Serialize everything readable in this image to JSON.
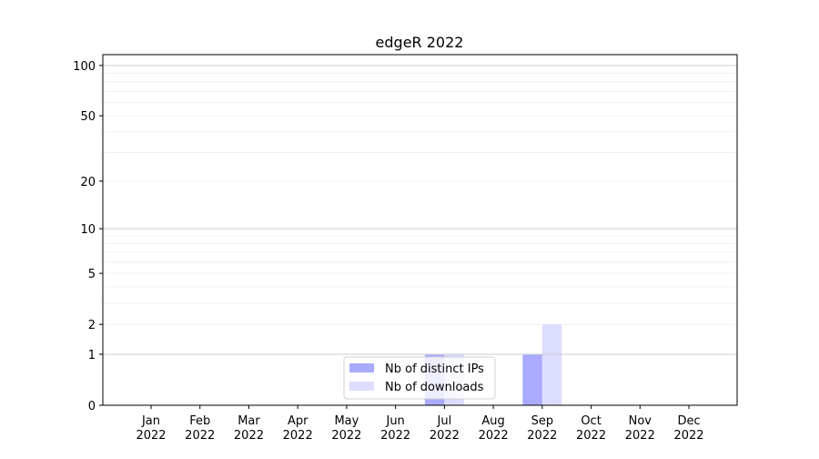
{
  "chart_data": {
    "type": "bar",
    "title": "edgeR 2022",
    "xlabel": "",
    "ylabel": "",
    "yscale": "symlog (log of 1+y)",
    "ylim": [
      0,
      116
    ],
    "yticks": [
      0,
      1,
      2,
      5,
      10,
      20,
      50,
      100
    ],
    "grid": true,
    "legend_position": "lower center",
    "categories": [
      "Jan\n2022",
      "Feb\n2022",
      "Mar\n2022",
      "Apr\n2022",
      "May\n2022",
      "Jun\n2022",
      "Jul\n2022",
      "Aug\n2022",
      "Sep\n2022",
      "Oct\n2022",
      "Nov\n2022",
      "Dec\n2022"
    ],
    "series": [
      {
        "name": "Nb of distinct IPs",
        "color": "#aaaaff",
        "values": [
          0,
          0,
          0,
          0,
          0,
          0,
          1,
          0,
          1,
          0,
          0,
          0
        ]
      },
      {
        "name": "Nb of downloads",
        "color": "#ddddff",
        "values": [
          0,
          0,
          0,
          0,
          0,
          0,
          1,
          0,
          2,
          0,
          0,
          0
        ]
      }
    ]
  }
}
